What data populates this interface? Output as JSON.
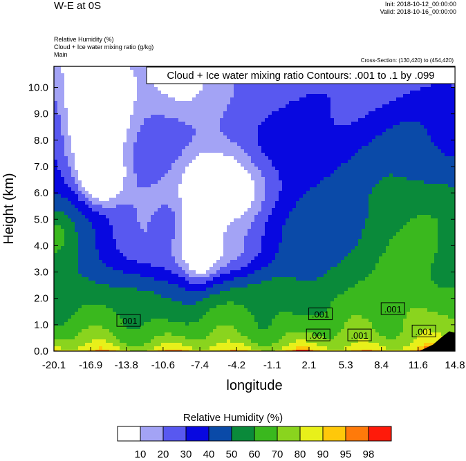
{
  "header": {
    "title": "W-E at 0S",
    "init": "Init: 2018-10-12_00:00:00",
    "valid": "Valid: 2018-10-16_00:00:00",
    "line1": "Relative Humidity   (%)",
    "line2": "Cloud + Ice water mixing ratio   (g/kg)",
    "line3": "Main",
    "cross_section": "Cross-Section: (130,420) to (454,420)"
  },
  "chart_data": {
    "type": "heatmap",
    "title": "W-E at 0S",
    "xlabel": "longitude",
    "ylabel": "Height (km)",
    "x_ticks": [
      "-20.1",
      "-16.9",
      "-13.8",
      "-10.6",
      "-7.4",
      "-4.2",
      "-1.1",
      "2.1",
      "5.3",
      "8.4",
      "11.6",
      "14.8"
    ],
    "y_ticks": [
      "0.0",
      "1.0",
      "2.0",
      "3.0",
      "4.0",
      "5.0",
      "6.0",
      "7.0",
      "8.0",
      "9.0",
      "10.0"
    ],
    "xlim": [
      -20.1,
      14.8
    ],
    "ylim": [
      0.0,
      10.8
    ],
    "contour_box": "Cloud + Ice water mixing ratio Contours: .001 to .1 by .099",
    "contour_labels": [
      {
        "text": ".001",
        "x": -13.6,
        "y": 1.15
      },
      {
        "text": ".001",
        "x": 3.1,
        "y": 1.4
      },
      {
        "text": ".001",
        "x": 2.9,
        "y": 0.6
      },
      {
        "text": ".001",
        "x": 6.5,
        "y": 0.6
      },
      {
        "text": ".001",
        "x": 9.4,
        "y": 1.6
      },
      {
        "text": ".001",
        "x": 12.1,
        "y": 0.75
      }
    ],
    "colorbar": {
      "title": "Relative Humidity  (%)",
      "levels": [
        "10",
        "20",
        "30",
        "40",
        "50",
        "60",
        "70",
        "80",
        "90",
        "95",
        "98"
      ],
      "colors": [
        "#ffffff",
        "#a3a3f5",
        "#5858f0",
        "#0808e0",
        "#0a4aa8",
        "#0a8a3a",
        "#3ab81e",
        "#8ad41e",
        "#e8f01a",
        "#ffc80a",
        "#ff7a0a",
        "#ff1a0a"
      ]
    }
  }
}
